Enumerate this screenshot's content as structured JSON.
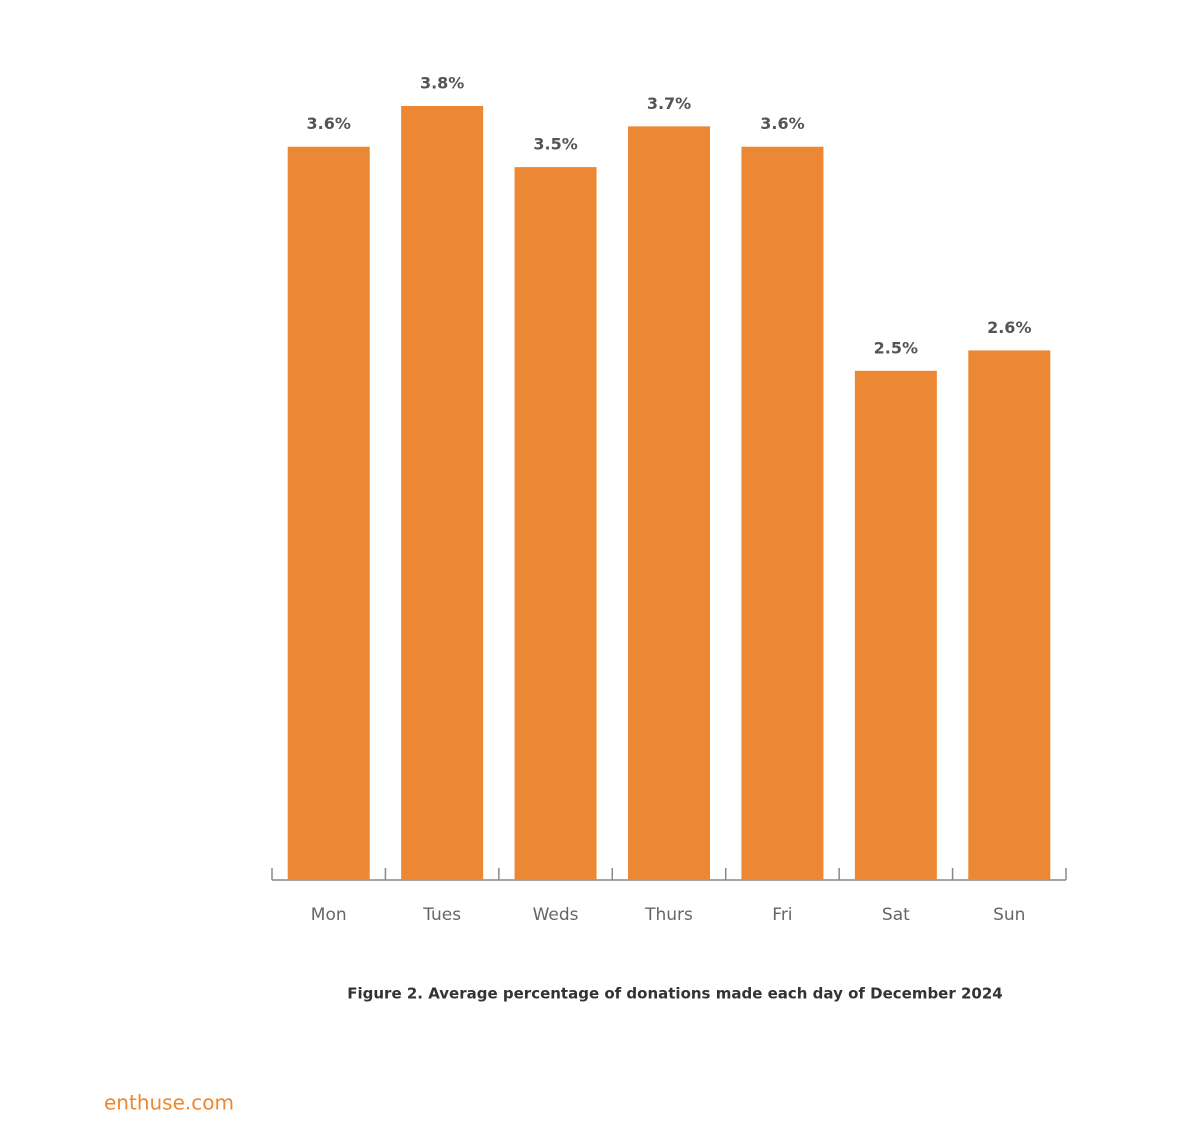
{
  "chart_data": {
    "type": "bar",
    "categories": [
      "Mon",
      "Tues",
      "Weds",
      "Thurs",
      "Fri",
      "Sat",
      "Sun"
    ],
    "values": [
      3.6,
      3.8,
      3.5,
      3.7,
      3.6,
      2.5,
      2.6
    ],
    "value_labels": [
      "3.6%",
      "3.8%",
      "3.5%",
      "3.7%",
      "3.6%",
      "2.5%",
      "2.6%"
    ],
    "color": "#ec8733",
    "caption": "Figure 2. Average percentage of donations made each day of December 2024"
  },
  "footer": "enthuse.com"
}
